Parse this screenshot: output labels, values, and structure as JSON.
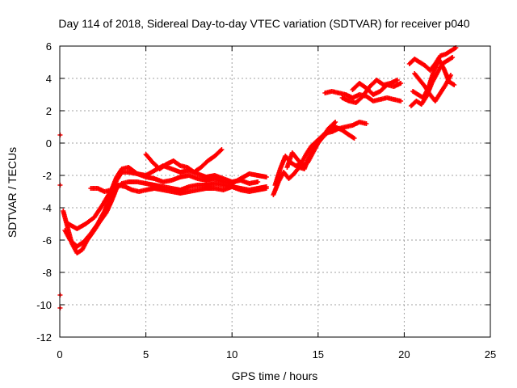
{
  "chart_data": {
    "type": "scatter",
    "title": "Day 114 of 2018, Sidereal Day-to-day VTEC variation (SDTVAR) for receiver p040",
    "xlabel": "GPS time / hours",
    "ylabel": "SDTVAR / TECUs",
    "xlim": [
      0,
      25
    ],
    "ylim": [
      -12,
      6
    ],
    "xticks": [
      "0",
      "5",
      "10",
      "15",
      "20",
      "25"
    ],
    "yticks": [
      "-12",
      "-10",
      "-8",
      "-6",
      "-4",
      "-2",
      "0",
      "2",
      "4",
      "6"
    ],
    "grid": true,
    "series_color": "#ff0000",
    "series": [
      {
        "x": [
          0.2,
          0.4,
          0.7,
          1.0,
          1.3,
          1.6,
          2.0,
          2.3,
          2.7,
          3.0,
          3.3,
          3.6,
          4.0,
          4.5,
          5.0,
          5.5,
          6.0,
          6.5,
          7.0,
          7.5,
          8.0,
          8.5,
          9.0,
          9.5,
          10.0,
          10.5,
          11.0,
          11.5,
          12.0
        ],
        "y": [
          -4.2,
          -5.0,
          -6.2,
          -6.8,
          -6.6,
          -6.0,
          -5.4,
          -4.9,
          -4.3,
          -3.6,
          -2.8,
          -2.5,
          -2.4,
          -2.4,
          -2.5,
          -2.6,
          -2.7,
          -2.8,
          -2.9,
          -2.7,
          -2.6,
          -2.6,
          -2.5,
          -2.6,
          -2.7,
          -2.8,
          -2.9,
          -2.8,
          -2.7
        ]
      },
      {
        "x": [
          0.3,
          0.6,
          1.0,
          1.4,
          1.8,
          2.2,
          2.6,
          3.0,
          3.3,
          3.6,
          4.0,
          4.5,
          5.0,
          5.5,
          6.0,
          6.5,
          7.0,
          7.5,
          8.0,
          8.5,
          9.0,
          9.5,
          10.0,
          10.5,
          11.0,
          11.5
        ],
        "y": [
          -5.4,
          -6.0,
          -6.4,
          -6.1,
          -5.6,
          -5.0,
          -4.2,
          -3.2,
          -2.3,
          -1.8,
          -1.8,
          -1.9,
          -2.0,
          -1.7,
          -1.4,
          -1.6,
          -1.8,
          -1.7,
          -1.9,
          -2.1,
          -2.0,
          -2.2,
          -2.4,
          -2.3,
          -2.5,
          -2.4
        ]
      },
      {
        "x": [
          0.5,
          1.0,
          1.5,
          2.0,
          2.5,
          3.0,
          3.3,
          3.6,
          4.0,
          4.5,
          5.0,
          5.5,
          6.0,
          6.5,
          7.0,
          7.5,
          8.0,
          8.5,
          9.0,
          9.5,
          10.0,
          10.5,
          11.0,
          11.5,
          12.0
        ],
        "y": [
          -5.0,
          -5.3,
          -5.0,
          -4.6,
          -3.8,
          -2.9,
          -2.1,
          -1.6,
          -1.5,
          -1.9,
          -2.1,
          -2.2,
          -2.4,
          -2.3,
          -2.1,
          -2.0,
          -2.2,
          -2.3,
          -2.2,
          -2.4,
          -2.5,
          -2.2,
          -1.9,
          -2.0,
          -2.1
        ]
      },
      {
        "x": [
          1.8,
          2.2,
          2.6,
          3.0,
          3.4,
          3.8,
          4.2,
          4.6,
          5.0,
          5.5,
          6.0,
          6.5,
          7.0,
          7.5,
          8.0,
          8.5,
          9.0,
          9.5,
          10.0,
          10.5,
          11.0,
          11.5,
          12.0
        ],
        "y": [
          -2.8,
          -2.8,
          -3.0,
          -2.9,
          -2.6,
          -2.7,
          -2.9,
          -3.0,
          -2.9,
          -2.8,
          -2.9,
          -3.0,
          -3.1,
          -3.0,
          -2.9,
          -2.8,
          -2.8,
          -2.9,
          -2.7,
          -2.9,
          -3.0,
          -2.9,
          -2.8
        ]
      },
      {
        "x": [
          5.0,
          5.4,
          5.8,
          6.2,
          6.6,
          7.0,
          7.4,
          7.8,
          8.2,
          8.6,
          9.0,
          9.4
        ],
        "y": [
          -0.7,
          -1.2,
          -1.6,
          -1.3,
          -1.1,
          -1.4,
          -1.5,
          -1.8,
          -1.5,
          -1.1,
          -0.8,
          -0.4
        ]
      },
      {
        "x": [
          12.5,
          12.8,
          13.1,
          13.4,
          13.7,
          14.0,
          14.3,
          14.6,
          15.0,
          15.4,
          15.8,
          16.2,
          16.6,
          17.0,
          17.4,
          17.8
        ],
        "y": [
          -2.6,
          -1.6,
          -0.8,
          -1.2,
          -1.4,
          -1.3,
          -0.7,
          -0.2,
          0.2,
          0.6,
          0.7,
          0.9,
          1.0,
          1.1,
          1.3,
          1.2
        ]
      },
      {
        "x": [
          12.4,
          12.7,
          13.0,
          13.3,
          13.6,
          13.9,
          14.2,
          14.5,
          14.8,
          15.2,
          15.6,
          16.0,
          16.4,
          16.8,
          17.1
        ],
        "y": [
          -3.2,
          -2.4,
          -1.8,
          -2.2,
          -1.9,
          -1.5,
          -1.6,
          -0.8,
          -0.2,
          0.3,
          0.7,
          1.0,
          0.8,
          0.5,
          0.3
        ]
      },
      {
        "x": [
          13.2,
          13.5,
          13.8,
          14.1,
          14.4,
          14.7,
          15.0,
          15.3,
          15.6,
          16.0
        ],
        "y": [
          -1.5,
          -0.6,
          -1.0,
          -1.4,
          -1.2,
          -0.6,
          0.0,
          0.4,
          0.9,
          1.3
        ]
      },
      {
        "x": [
          15.4,
          15.8,
          16.2,
          16.6,
          17.0,
          17.4,
          17.8,
          18.2,
          18.6,
          19.0,
          19.4,
          19.8
        ],
        "y": [
          3.1,
          3.2,
          3.1,
          3.0,
          2.8,
          3.0,
          2.9,
          2.6,
          2.7,
          2.8,
          2.7,
          2.6
        ]
      },
      {
        "x": [
          16.4,
          16.8,
          17.2,
          17.6,
          18.0,
          18.4,
          18.8,
          19.2,
          19.6
        ],
        "y": [
          2.8,
          2.6,
          2.5,
          2.9,
          3.5,
          3.9,
          3.6,
          3.7,
          3.9
        ]
      },
      {
        "x": [
          17.0,
          17.4,
          17.8,
          18.2,
          18.6,
          19.0,
          19.4,
          19.8
        ],
        "y": [
          3.3,
          3.7,
          3.4,
          3.0,
          3.2,
          3.6,
          3.5,
          3.7
        ]
      },
      {
        "x": [
          20.3,
          20.6,
          20.9,
          21.2,
          21.5,
          21.8,
          22.1,
          22.4,
          22.7,
          23.0
        ],
        "y": [
          4.9,
          5.2,
          5.0,
          4.8,
          4.5,
          4.9,
          5.4,
          5.5,
          5.7,
          5.9
        ]
      },
      {
        "x": [
          20.4,
          20.7,
          21.0,
          21.3,
          21.6,
          21.9,
          22.2,
          22.5,
          22.8
        ],
        "y": [
          2.3,
          2.6,
          2.4,
          2.9,
          3.7,
          4.3,
          4.9,
          5.1,
          5.3
        ]
      },
      {
        "x": [
          20.5,
          20.8,
          21.1,
          21.4,
          21.7,
          22.0,
          22.3,
          22.6,
          22.9
        ],
        "y": [
          3.2,
          3.0,
          2.8,
          3.4,
          4.4,
          5.2,
          4.6,
          3.8,
          3.6
        ]
      },
      {
        "x": [
          20.6,
          20.9,
          21.2,
          21.5,
          21.8,
          22.1,
          22.4,
          22.7
        ],
        "y": [
          4.3,
          3.9,
          3.5,
          3.0,
          2.6,
          3.1,
          3.6,
          4.2
        ]
      },
      {
        "x": [
          0.02,
          0.02,
          0.02,
          0.02
        ],
        "y": [
          0.5,
          -2.6,
          -9.4,
          -10.2
        ]
      }
    ]
  }
}
